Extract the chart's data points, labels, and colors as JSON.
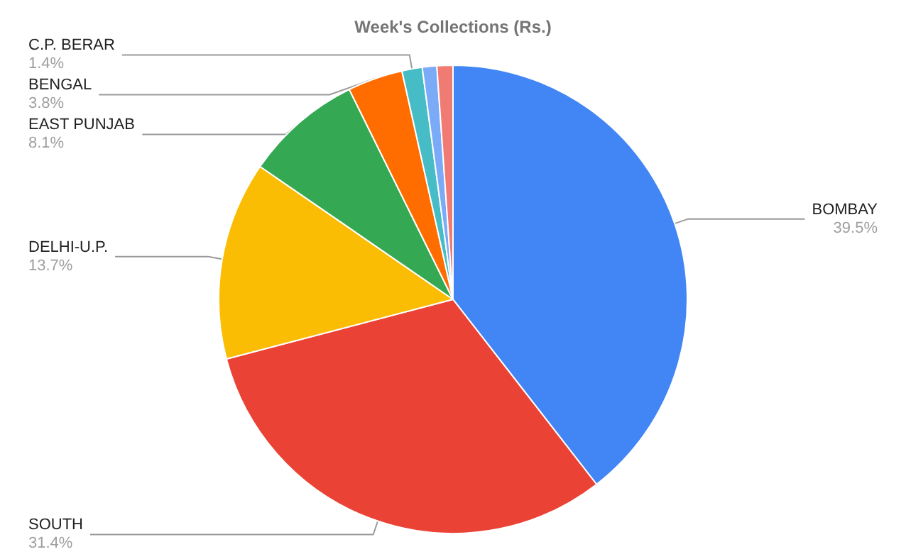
{
  "chart_data": {
    "type": "pie",
    "title": "Week's Collections (Rs.)",
    "categories": [
      "BOMBAY",
      "SOUTH",
      "DELHI-U.P.",
      "EAST PUNJAB",
      "BENGAL",
      "C.P. BERAR",
      null,
      null
    ],
    "values": [
      39.5,
      31.4,
      13.7,
      8.1,
      3.8,
      1.4,
      1.0,
      1.1
    ],
    "value_labels": [
      "39.5%",
      "31.4%",
      "13.7%",
      "8.1%",
      "3.8%",
      "1.4%",
      null,
      null
    ],
    "colors": [
      "#4285f4",
      "#ea4335",
      "#fbbc04",
      "#34a853",
      "#ff6d01",
      "#46bdc6",
      "#7baaf7",
      "#f07b72"
    ],
    "legend": false
  }
}
